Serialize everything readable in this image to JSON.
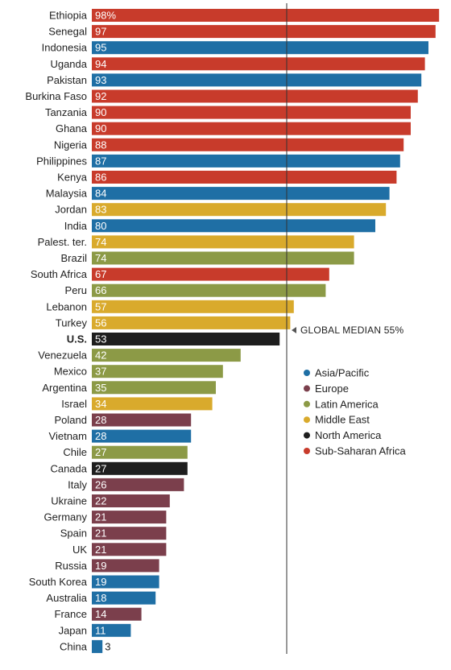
{
  "chart_data": {
    "type": "bar",
    "orientation": "horizontal",
    "percent_suffix": "%",
    "median": {
      "value": 55,
      "label": "GLOBAL MEDIAN 55%"
    },
    "colors": {
      "Asia/Pacific": "#1f6fa5",
      "Europe": "#7b3f4c",
      "Latin America": "#8c9a46",
      "Middle East": "#d9aa2c",
      "North America": "#1e1e1e",
      "Sub-Saharan Africa": "#c83b2b"
    },
    "legend": [
      "Asia/Pacific",
      "Europe",
      "Latin America",
      "Middle East",
      "North America",
      "Sub-Saharan Africa"
    ],
    "categories": [
      {
        "name": "Ethiopia",
        "value": 98,
        "region": "Sub-Saharan Africa"
      },
      {
        "name": "Senegal",
        "value": 97,
        "region": "Sub-Saharan Africa"
      },
      {
        "name": "Indonesia",
        "value": 95,
        "region": "Asia/Pacific"
      },
      {
        "name": "Uganda",
        "value": 94,
        "region": "Sub-Saharan Africa"
      },
      {
        "name": "Pakistan",
        "value": 93,
        "region": "Asia/Pacific"
      },
      {
        "name": "Burkina Faso",
        "value": 92,
        "region": "Sub-Saharan Africa"
      },
      {
        "name": "Tanzania",
        "value": 90,
        "region": "Sub-Saharan Africa"
      },
      {
        "name": "Ghana",
        "value": 90,
        "region": "Sub-Saharan Africa"
      },
      {
        "name": "Nigeria",
        "value": 88,
        "region": "Sub-Saharan Africa"
      },
      {
        "name": "Philippines",
        "value": 87,
        "region": "Asia/Pacific"
      },
      {
        "name": "Kenya",
        "value": 86,
        "region": "Sub-Saharan Africa"
      },
      {
        "name": "Malaysia",
        "value": 84,
        "region": "Asia/Pacific"
      },
      {
        "name": "Jordan",
        "value": 83,
        "region": "Middle East"
      },
      {
        "name": "India",
        "value": 80,
        "region": "Asia/Pacific"
      },
      {
        "name": "Palest. ter.",
        "value": 74,
        "region": "Middle East"
      },
      {
        "name": "Brazil",
        "value": 74,
        "region": "Latin America"
      },
      {
        "name": "South Africa",
        "value": 67,
        "region": "Sub-Saharan Africa"
      },
      {
        "name": "Peru",
        "value": 66,
        "region": "Latin America"
      },
      {
        "name": "Lebanon",
        "value": 57,
        "region": "Middle East"
      },
      {
        "name": "Turkey",
        "value": 56,
        "region": "Middle East"
      },
      {
        "name": "U.S.",
        "value": 53,
        "region": "North America",
        "bold": true
      },
      {
        "name": "Venezuela",
        "value": 42,
        "region": "Latin America"
      },
      {
        "name": "Mexico",
        "value": 37,
        "region": "Latin America"
      },
      {
        "name": "Argentina",
        "value": 35,
        "region": "Latin America"
      },
      {
        "name": "Israel",
        "value": 34,
        "region": "Middle East"
      },
      {
        "name": "Poland",
        "value": 28,
        "region": "Europe"
      },
      {
        "name": "Vietnam",
        "value": 28,
        "region": "Asia/Pacific"
      },
      {
        "name": "Chile",
        "value": 27,
        "region": "Latin America"
      },
      {
        "name": "Canada",
        "value": 27,
        "region": "North America"
      },
      {
        "name": "Italy",
        "value": 26,
        "region": "Europe"
      },
      {
        "name": "Ukraine",
        "value": 22,
        "region": "Europe"
      },
      {
        "name": "Germany",
        "value": 21,
        "region": "Europe"
      },
      {
        "name": "Spain",
        "value": 21,
        "region": "Europe"
      },
      {
        "name": "UK",
        "value": 21,
        "region": "Europe"
      },
      {
        "name": "Russia",
        "value": 19,
        "region": "Europe"
      },
      {
        "name": "South Korea",
        "value": 19,
        "region": "Asia/Pacific"
      },
      {
        "name": "Australia",
        "value": 18,
        "region": "Asia/Pacific"
      },
      {
        "name": "France",
        "value": 14,
        "region": "Europe"
      },
      {
        "name": "Japan",
        "value": 11,
        "region": "Asia/Pacific"
      },
      {
        "name": "China",
        "value": 3,
        "region": "Asia/Pacific"
      }
    ]
  }
}
